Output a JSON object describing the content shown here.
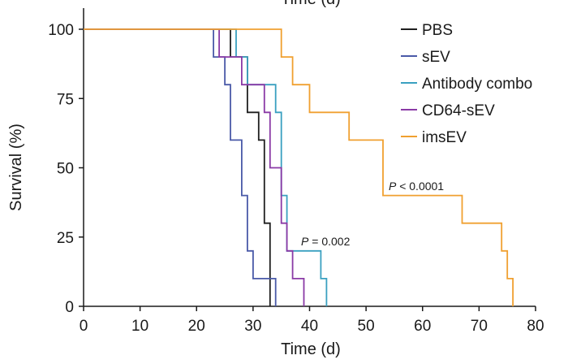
{
  "chart_data": {
    "type": "line",
    "step": true,
    "top_title": "Time (d)",
    "xlabel": "Time (d)",
    "ylabel": "Survival (%)",
    "xlim": [
      0,
      80
    ],
    "ylim": [
      0,
      100
    ],
    "xticks": [
      "0",
      "10",
      "20",
      "30",
      "40",
      "50",
      "60",
      "70",
      "80"
    ],
    "yticks": [
      "0",
      "25",
      "50",
      "75",
      "100"
    ],
    "grid": false,
    "legend_position": "top-right",
    "series": [
      {
        "name": "PBS",
        "color": "#1f1f1f",
        "points": [
          [
            0,
            100
          ],
          [
            26,
            100
          ],
          [
            26,
            90
          ],
          [
            29,
            90
          ],
          [
            29,
            70
          ],
          [
            31,
            70
          ],
          [
            31,
            60
          ],
          [
            32,
            60
          ],
          [
            32,
            30
          ],
          [
            33,
            30
          ],
          [
            33,
            0
          ]
        ]
      },
      {
        "name": "sEV",
        "color": "#4a5aa8",
        "points": [
          [
            0,
            100
          ],
          [
            23,
            100
          ],
          [
            23,
            90
          ],
          [
            25,
            90
          ],
          [
            25,
            80
          ],
          [
            26,
            80
          ],
          [
            26,
            60
          ],
          [
            28,
            60
          ],
          [
            28,
            40
          ],
          [
            29,
            40
          ],
          [
            29,
            20
          ],
          [
            30,
            20
          ],
          [
            30,
            10
          ],
          [
            34,
            10
          ],
          [
            34,
            0
          ]
        ]
      },
      {
        "name": "Antibody combo",
        "color": "#3aa0c0",
        "points": [
          [
            0,
            100
          ],
          [
            27,
            100
          ],
          [
            27,
            90
          ],
          [
            29,
            90
          ],
          [
            29,
            80
          ],
          [
            34,
            80
          ],
          [
            34,
            70
          ],
          [
            35,
            70
          ],
          [
            35,
            40
          ],
          [
            36,
            40
          ],
          [
            36,
            20
          ],
          [
            42,
            20
          ],
          [
            42,
            10
          ],
          [
            43,
            10
          ],
          [
            43,
            0
          ]
        ]
      },
      {
        "name": "CD64-sEV",
        "color": "#8a3aa6",
        "points": [
          [
            0,
            100
          ],
          [
            24,
            100
          ],
          [
            24,
            90
          ],
          [
            28,
            90
          ],
          [
            28,
            80
          ],
          [
            32,
            80
          ],
          [
            32,
            70
          ],
          [
            33,
            70
          ],
          [
            33,
            50
          ],
          [
            35,
            50
          ],
          [
            35,
            30
          ],
          [
            36,
            30
          ],
          [
            36,
            20
          ],
          [
            37,
            20
          ],
          [
            37,
            10
          ],
          [
            39,
            10
          ],
          [
            39,
            0
          ]
        ]
      },
      {
        "name": "imsEV",
        "color": "#f0a030",
        "points": [
          [
            0,
            100
          ],
          [
            35,
            100
          ],
          [
            35,
            90
          ],
          [
            37,
            90
          ],
          [
            37,
            80
          ],
          [
            40,
            80
          ],
          [
            40,
            70
          ],
          [
            47,
            70
          ],
          [
            47,
            60
          ],
          [
            53,
            60
          ],
          [
            53,
            40
          ],
          [
            67,
            40
          ],
          [
            67,
            30
          ],
          [
            74,
            30
          ],
          [
            74,
            20
          ],
          [
            75,
            20
          ],
          [
            75,
            10
          ],
          [
            76,
            10
          ],
          [
            76,
            0
          ]
        ]
      }
    ],
    "annotations": [
      {
        "italic": "P",
        "text": " < 0.0001",
        "x": 54,
        "y": 42
      },
      {
        "italic": "P",
        "text": " = 0.002",
        "x": 38.5,
        "y": 22
      }
    ]
  }
}
